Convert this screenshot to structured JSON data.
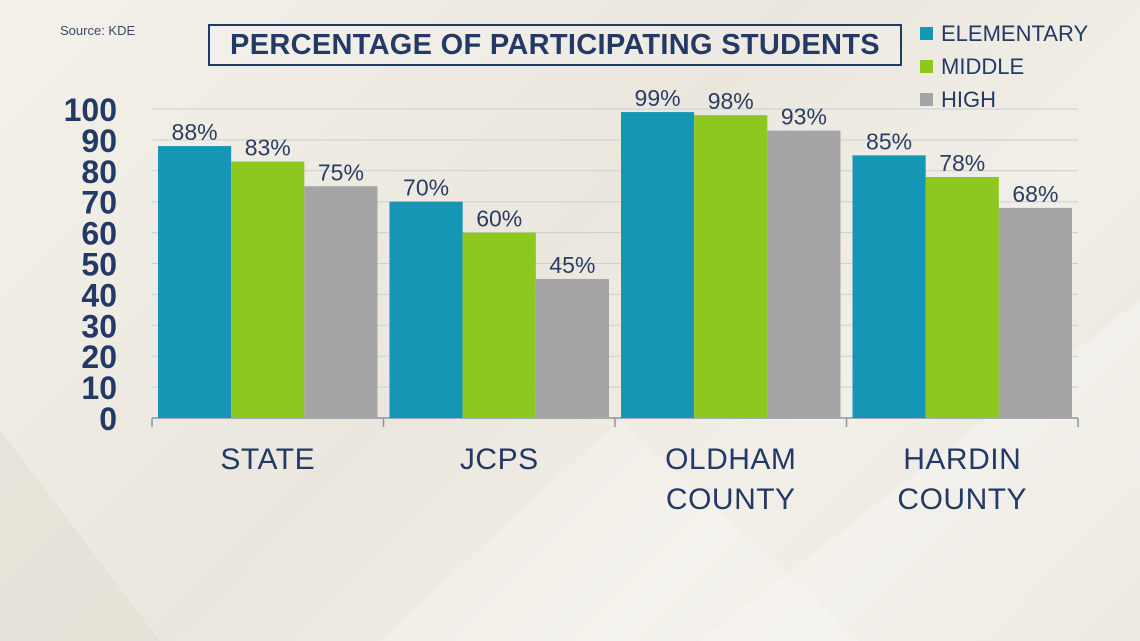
{
  "source": "Source: KDE",
  "chart_data": {
    "type": "bar",
    "title": "PERCENTAGE OF PARTICIPATING STUDENTS",
    "categories": [
      [
        "STATE"
      ],
      [
        "JCPS"
      ],
      [
        "OLDHAM",
        "COUNTY"
      ],
      [
        "HARDIN",
        "COUNTY"
      ]
    ],
    "series": [
      {
        "name": "ELEMENTARY",
        "color": "#1496b4",
        "values": [
          88,
          70,
          99,
          85
        ],
        "labels": [
          "88%",
          "70%",
          "99%",
          "85%"
        ]
      },
      {
        "name": "MIDDLE",
        "color": "#8cc81e",
        "values": [
          83,
          60,
          98,
          78
        ],
        "labels": [
          "83%",
          "60%",
          "98%",
          "78%"
        ]
      },
      {
        "name": "HIGH",
        "color": "#a5a5a5",
        "values": [
          75,
          45,
          93,
          68
        ],
        "labels": [
          "75%",
          "45%",
          "93%",
          "68%"
        ]
      }
    ],
    "yticks": [
      "0",
      "10",
      "20",
      "30",
      "40",
      "50",
      "60",
      "70",
      "80",
      "90",
      "100"
    ],
    "ylim": [
      0,
      100
    ],
    "grid": true,
    "legend_position": "top-right"
  }
}
